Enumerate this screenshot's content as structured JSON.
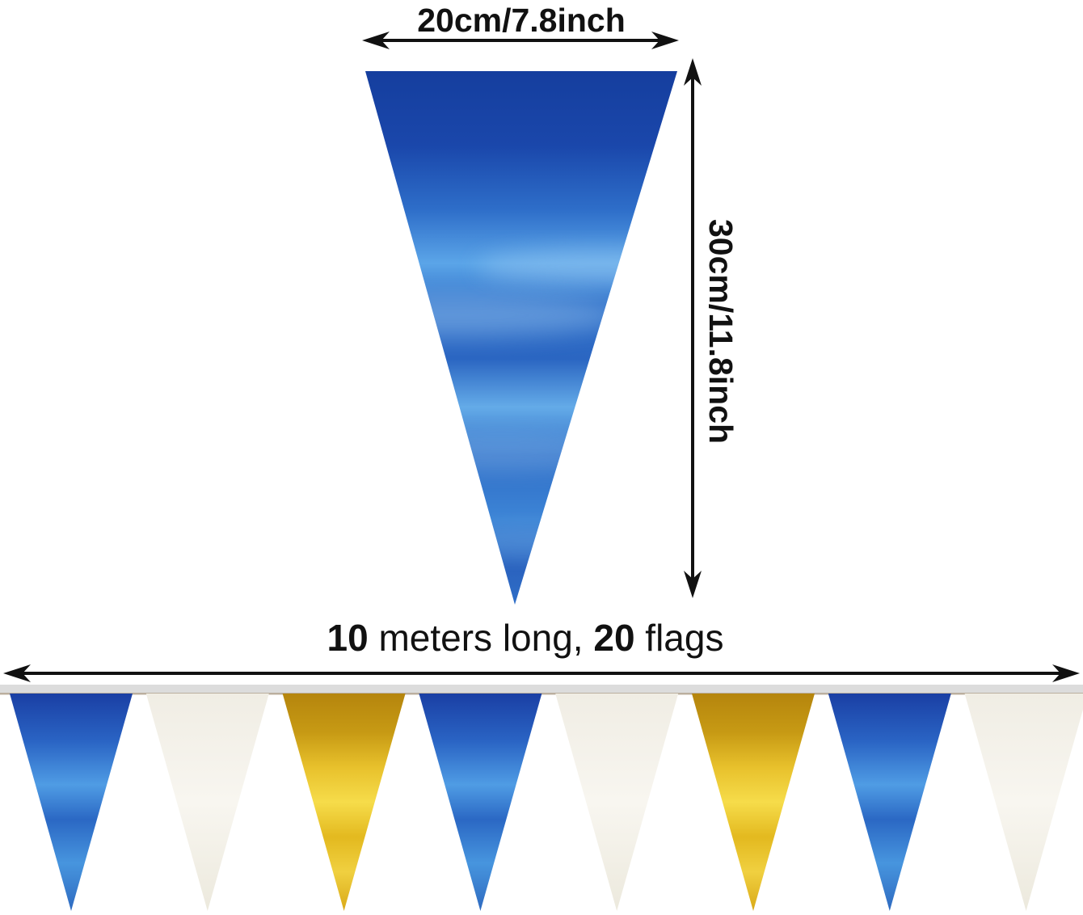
{
  "product_diagram": {
    "width_label": "20cm/7.8inch",
    "height_label": "30cm/11.8inch",
    "length_line": {
      "flag_width_bold": "10",
      "middle_text": " meters long, ",
      "flag_count_bold": "20",
      "end_text": " flags"
    }
  },
  "banner": {
    "flags": [
      "blue",
      "white",
      "gold",
      "blue",
      "white",
      "gold",
      "blue",
      "white"
    ]
  },
  "colors": {
    "arrow_black": "#111111",
    "string_gray": "#dcdcdc",
    "string_edge_tan": "#b3a48e",
    "flag_blue_dark": "#16409f",
    "flag_blue_bright": "#4f9ce4",
    "flag_gold_dark": "#bd8b0f",
    "flag_gold_bright": "#f6dc4a",
    "flag_white": "#f4f1e8"
  }
}
